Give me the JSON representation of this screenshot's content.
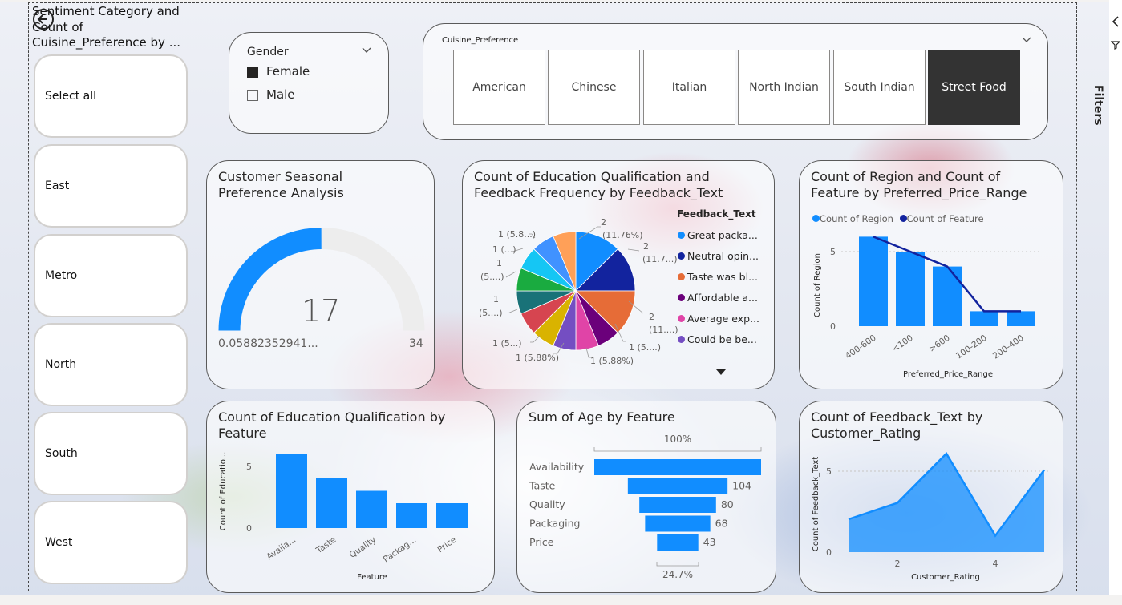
{
  "colors": {
    "primary": "#118DFF",
    "dark": "#12239E",
    "selected": "#333333"
  },
  "sentiment_slicer": {
    "title": "Sentiment Category and Count of Cuisine_Preference by ...",
    "items": [
      "Select all",
      "East",
      "Metro",
      "North",
      "South",
      "West"
    ]
  },
  "gender_slicer": {
    "title": "Gender",
    "options": [
      {
        "label": "Female",
        "checked": true
      },
      {
        "label": "Male",
        "checked": false
      }
    ]
  },
  "cuisine_slicer": {
    "title": "Cuisine_Preference",
    "options": [
      "American",
      "Chinese",
      "Italian",
      "North Indian",
      "South Indian",
      "Street Food"
    ],
    "selected": "Street Food"
  },
  "gauge": {
    "title": "Customer Seasonal Preference Analysis",
    "value_label": "17",
    "min_label": "0.05882352941...",
    "max_label": "34",
    "chart_data": {
      "type": "gauge",
      "value": 17,
      "min": 0.0588235294,
      "max": 34
    }
  },
  "pie": {
    "title": "Count of Education Qualification and Feedback Frequency by Feedback_Text",
    "legend_title": "Feedback_Text",
    "legend": [
      {
        "label": "Great packa...",
        "color": "#118DFF"
      },
      {
        "label": "Neutral opin...",
        "color": "#12239E"
      },
      {
        "label": "Taste was bl...",
        "color": "#E66C37"
      },
      {
        "label": "Affordable a...",
        "color": "#6B007B"
      },
      {
        "label": "Average exp...",
        "color": "#E044A7"
      },
      {
        "label": "Could be be...",
        "color": "#744EC2"
      }
    ],
    "labels": {
      "l1a": "2",
      "l1b": "(11.76%)",
      "l2a": "2",
      "l2b": "(11.7...)",
      "l3a": "2",
      "l3b": "(11....)",
      "l4": "1 (5....)",
      "l5": "1 (5.88%)",
      "l6": "1 (5.88%)",
      "l7": "1 (5...)",
      "l8a": "1",
      "l8b": "(5....)",
      "l9a": "1",
      "l9b": "(5....)",
      "l10": "1 (...)",
      "l11": "1 (5.8...)"
    },
    "chart_data": {
      "type": "pie",
      "values": [
        2,
        2,
        2,
        1,
        1,
        1,
        1,
        1,
        1,
        1,
        1,
        1,
        1
      ],
      "colors": [
        "#118DFF",
        "#12239E",
        "#E66C37",
        "#6B007B",
        "#E044A7",
        "#744EC2",
        "#D9B300",
        "#D64550",
        "#197278",
        "#1AAB40",
        "#15C6F4",
        "#4092FF",
        "#FFA058"
      ]
    }
  },
  "region_chart": {
    "title": "Count of Region and Count of Feature by Preferred_Price_Range",
    "legend": [
      "Count of Region",
      "Count of Feature"
    ],
    "ylabel": "Count of Region",
    "xlabel": "Preferred_Price_Range",
    "chart_data": {
      "type": "bar",
      "categories": [
        "400-600",
        "<100",
        ">600",
        "100-200",
        "200-400"
      ],
      "series": [
        {
          "name": "Count of Region",
          "values": [
            6,
            5,
            4,
            1,
            1
          ]
        },
        {
          "name": "Count of Feature",
          "values": [
            6,
            5,
            4,
            1,
            1
          ]
        }
      ],
      "yticks": [
        "0",
        "5"
      ],
      "ylim": [
        0,
        6.5
      ]
    }
  },
  "edu_chart": {
    "title": "Count of Education Qualification by Feature",
    "ylabel": "Count of Educatio...",
    "xlabel": "Feature",
    "chart_data": {
      "type": "bar",
      "categories": [
        "Availa...",
        "Taste",
        "Quality",
        "Packag...",
        "Price"
      ],
      "values": [
        6,
        4,
        3,
        2,
        2
      ],
      "yticks": [
        "0",
        "5"
      ],
      "ylim": [
        0,
        6.5
      ]
    }
  },
  "funnel": {
    "title": "Sum of Age by Feature",
    "top_label": "100%",
    "bottom_label": "24.7%",
    "chart_data": {
      "type": "bar",
      "categories": [
        "Availability",
        "Taste",
        "Quality",
        "Packaging",
        "Price"
      ],
      "values": [
        174,
        104,
        80,
        68,
        43
      ],
      "value_labels": [
        "",
        "104",
        "80",
        "68",
        "43"
      ]
    }
  },
  "area_chart": {
    "title": "Count of Feedback_Text by Customer_Rating",
    "ylabel": "Count of Feedback_Text",
    "xlabel": "Customer_Rating",
    "chart_data": {
      "type": "area",
      "x": [
        1,
        2,
        3,
        4,
        5
      ],
      "values": [
        2,
        3,
        6,
        1,
        5
      ],
      "xticks": [
        "2",
        "4"
      ],
      "yticks": [
        "0",
        "5"
      ],
      "ylim": [
        0,
        6.5
      ]
    }
  },
  "filters_label": "Filters"
}
